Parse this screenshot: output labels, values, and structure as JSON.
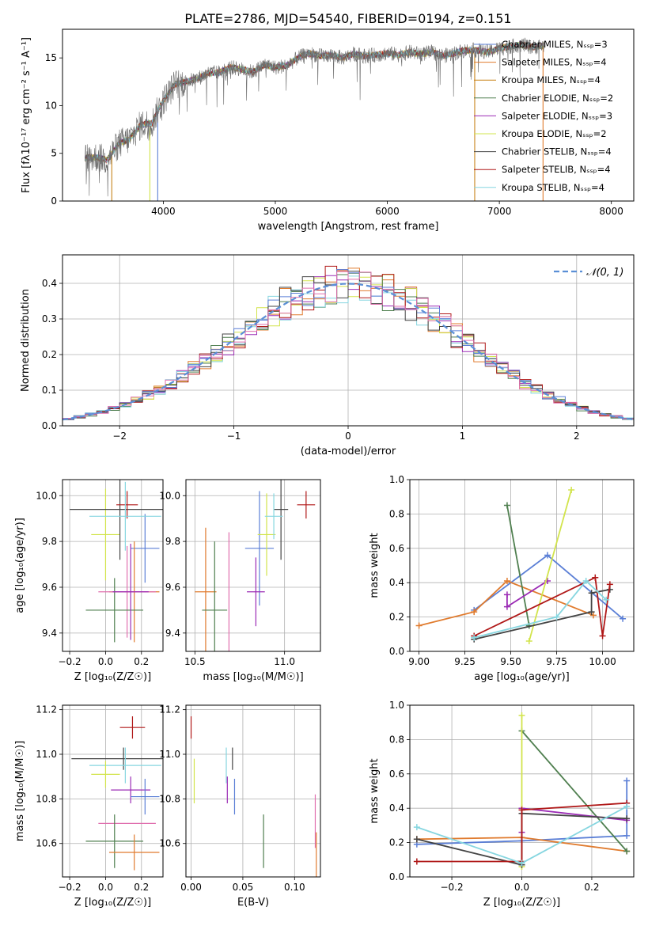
{
  "figure_title": "PLATE=2786, MJD=54540, FIBERID=0194, z=0.151",
  "series_colors": [
    "#5b7fd6",
    "#e07b2e",
    "#c8831a",
    "#4f7f4f",
    "#9b2bb5",
    "#d2e44c",
    "#444444",
    "#b01818",
    "#86d6e0"
  ],
  "chart_data": [
    {
      "id": "spectrum",
      "type": "line",
      "title": "PLATE=2786, MJD=54540, FIBERID=0194, z=0.151",
      "xlabel": "wavelength [Angstrom, rest frame]",
      "ylabel": "Flux [fλ10⁻¹⁷ erg cm⁻² s⁻¹ A⁻¹]",
      "xlim": [
        3100,
        8200
      ],
      "ylim": [
        0,
        18
      ],
      "xticks": [
        4000,
        5000,
        6000,
        7000,
        8000
      ],
      "yticks": [
        0,
        5,
        10,
        15
      ],
      "grid": false,
      "legend_position": "top-right",
      "legend": [
        {
          "label": "Chabrier MILES, Nₛₛₚ=3",
          "color": "#5b7fd6"
        },
        {
          "label": "Salpeter MILES, Nₛₛₚ=4",
          "color": "#e07b2e"
        },
        {
          "label": "Kroupa MILES, Nₛₛₚ=4",
          "color": "#c8831a"
        },
        {
          "label": "Chabrier ELODIE, Nₛₛₚ=2",
          "color": "#4f7f4f"
        },
        {
          "label": "Salpeter ELODIE, Nₛₛₚ=3",
          "color": "#9b2bb5"
        },
        {
          "label": "Kroupa ELODIE, Nₛₛₚ=2",
          "color": "#d2e44c"
        },
        {
          "label": "Chabrier STELIB, Nₛₛₚ=4",
          "color": "#444444"
        },
        {
          "label": "Salpeter STELIB, Nₛₛₚ=4",
          "color": "#b01818"
        },
        {
          "label": "Kroupa STELIB, Nₛₛₚ=4",
          "color": "#86d6e0"
        }
      ],
      "data_curve": {
        "x": [
          3300,
          3400,
          3500,
          3600,
          3700,
          3800,
          3900,
          3950,
          4000,
          4100,
          4200,
          4300,
          4400,
          4500,
          4600,
          4700,
          4800,
          4900,
          5000,
          5100,
          5200,
          5300,
          5400,
          5500,
          5600,
          5700,
          5800,
          5900,
          6000,
          6100,
          6200,
          6300,
          6400,
          6500,
          6600,
          6700,
          6800,
          6900,
          7000,
          7100,
          7200,
          7300,
          7400
        ],
        "y": [
          4.5,
          4.6,
          4.3,
          6.0,
          6.5,
          8.0,
          8.2,
          9.5,
          10.5,
          12.2,
          12.5,
          12.8,
          13.4,
          13.5,
          14.0,
          13.8,
          13.5,
          14.3,
          14.0,
          14.2,
          15.0,
          15.5,
          15.2,
          15.3,
          15.0,
          15.4,
          15.2,
          15.3,
          15.5,
          15.3,
          15.6,
          15.4,
          15.6,
          15.2,
          15.5,
          15.8,
          15.8,
          15.6,
          16.0,
          16.2,
          16.4,
          16.1,
          16.3
        ]
      },
      "model_dropouts": [
        {
          "color": "#c8831a",
          "x": 3540
        },
        {
          "color": "#d2e44c",
          "x": 3880
        },
        {
          "color": "#5b7fd6",
          "x": 3950
        },
        {
          "color": "#c8831a",
          "x": 6780
        },
        {
          "color": "#e07b2e",
          "x": 7390
        }
      ]
    },
    {
      "id": "residuals",
      "type": "histogram",
      "xlabel": "(data-model)/error",
      "ylabel": "Normed distribution",
      "xlim": [
        -2.5,
        2.5
      ],
      "ylim": [
        0,
        0.48
      ],
      "xticks": [
        -2,
        -1,
        0,
        1,
        2
      ],
      "yticks": [
        0.0,
        0.1,
        0.2,
        0.3,
        0.4
      ],
      "grid": true,
      "legend_position": "top-right",
      "legend": [
        {
          "label": "𝒩(0, 1)",
          "color": "#5b8fd6",
          "style": "dashed"
        }
      ],
      "bin_width": 0.1,
      "reference_curve": "normal(0,1)"
    },
    {
      "id": "age_vs_Z",
      "type": "scatter",
      "xlabel": "Z [log₁₀(Z/Z☉)]",
      "ylabel": "age  [log₁₀(age/yr)]",
      "xlim": [
        -0.24,
        0.32
      ],
      "ylim": [
        9.32,
        10.07
      ],
      "xticks": [
        -0.2,
        0.0,
        0.2
      ],
      "yticks": [
        9.4,
        9.6,
        9.8,
        10.0
      ],
      "grid": true,
      "points": [
        {
          "color": "#5b7fd6",
          "x": 0.22,
          "y": 9.77,
          "xerr": 0.08,
          "yerr": 0.15
        },
        {
          "color": "#e07b2e",
          "x": 0.16,
          "y": 9.58,
          "xerr": 0.14,
          "yerr": 0.22
        },
        {
          "color": "#e06fae",
          "x": 0.12,
          "y": 9.58,
          "xerr": 0.16,
          "yerr": 0.2
        },
        {
          "color": "#4f7f4f",
          "x": 0.05,
          "y": 9.5,
          "xerr": 0.16,
          "yerr": 0.14
        },
        {
          "color": "#9b2bb5",
          "x": 0.14,
          "y": 9.58,
          "xerr": 0.1,
          "yerr": 0.21
        },
        {
          "color": "#d2e44c",
          "x": 0.0,
          "y": 9.83,
          "xerr": 0.08,
          "yerr": 0.2
        },
        {
          "color": "#444444",
          "x": 0.08,
          "y": 9.94,
          "xerr": 0.28,
          "yerr": 0.22
        },
        {
          "color": "#b01818",
          "x": 0.12,
          "y": 9.96,
          "xerr": 0.06,
          "yerr": 0.06
        },
        {
          "color": "#86d6e0",
          "x": 0.11,
          "y": 9.91,
          "xerr": 0.2,
          "yerr": 0.15
        }
      ]
    },
    {
      "id": "age_vs_mass",
      "type": "scatter",
      "xlabel": "mass [log₁₀(M/M☉)]",
      "ylabel": "",
      "xlim": [
        10.45,
        11.2
      ],
      "ylim": [
        9.32,
        10.07
      ],
      "xticks": [
        10.5,
        11.0
      ],
      "yticks": [
        9.4,
        9.6,
        9.8,
        10.0
      ],
      "grid": true,
      "points": [
        {
          "color": "#5b7fd6",
          "x": 10.86,
          "y": 9.77,
          "xerr": 0.08,
          "yerr": 0.25
        },
        {
          "color": "#e07b2e",
          "x": 10.56,
          "y": 9.58,
          "xerr": 0.06,
          "yerr": 0.28
        },
        {
          "color": "#e06fae",
          "x": 10.69,
          "y": 9.58,
          "xerr": 0.0,
          "yerr": 0.26
        },
        {
          "color": "#4f7f4f",
          "x": 10.61,
          "y": 9.5,
          "xerr": 0.07,
          "yerr": 0.3
        },
        {
          "color": "#9b2bb5",
          "x": 10.84,
          "y": 9.58,
          "xerr": 0.05,
          "yerr": 0.15
        },
        {
          "color": "#d2e44c",
          "x": 10.9,
          "y": 9.83,
          "xerr": 0.05,
          "yerr": 0.18
        },
        {
          "color": "#444444",
          "x": 10.98,
          "y": 9.94,
          "xerr": 0.04,
          "yerr": 0.22
        },
        {
          "color": "#b01818",
          "x": 11.12,
          "y": 9.96,
          "xerr": 0.05,
          "yerr": 0.06
        },
        {
          "color": "#86d6e0",
          "x": 10.94,
          "y": 9.91,
          "xerr": 0.05,
          "yerr": 0.1
        }
      ]
    },
    {
      "id": "weight_vs_age",
      "type": "line",
      "xlabel": "age  [log₁₀(age/yr)]",
      "ylabel": "mass weight",
      "xlim": [
        8.95,
        10.17
      ],
      "ylim": [
        0.0,
        1.0
      ],
      "xticks": [
        9.0,
        9.25,
        9.5,
        9.75,
        10.0
      ],
      "yticks": [
        0.0,
        0.2,
        0.4,
        0.6,
        0.8,
        1.0
      ],
      "grid": true,
      "series": [
        {
          "color": "#5b7fd6",
          "x": [
            9.3,
            9.7,
            10.11
          ],
          "y": [
            0.24,
            0.56,
            0.19
          ]
        },
        {
          "color": "#e07b2e",
          "x": [
            9.0,
            9.3,
            9.48,
            9.95
          ],
          "y": [
            0.15,
            0.23,
            0.41,
            0.21
          ]
        },
        {
          "color": "#4f7f4f",
          "x": [
            9.48,
            9.6
          ],
          "y": [
            0.85,
            0.15
          ]
        },
        {
          "color": "#9b2bb5",
          "x": [
            9.48,
            9.48,
            9.7
          ],
          "y": [
            0.33,
            0.26,
            0.41
          ]
        },
        {
          "color": "#d2e44c",
          "x": [
            9.6,
            9.83
          ],
          "y": [
            0.06,
            0.94
          ]
        },
        {
          "color": "#444444",
          "x": [
            9.3,
            9.94,
            9.94,
            10.04
          ],
          "y": [
            0.07,
            0.23,
            0.34,
            0.36
          ]
        },
        {
          "color": "#b01818",
          "x": [
            9.3,
            9.96,
            10.0,
            10.04
          ],
          "y": [
            0.09,
            0.43,
            0.09,
            0.39
          ]
        },
        {
          "color": "#86d6e0",
          "x": [
            9.3,
            9.75,
            9.91,
            10.02
          ],
          "y": [
            0.08,
            0.2,
            0.41,
            0.3
          ]
        }
      ]
    },
    {
      "id": "mass_vs_Z",
      "type": "scatter",
      "xlabel": "Z [log₁₀(Z/Z☉)]",
      "ylabel": "mass [log₁₀(M/M☉)]",
      "xlim": [
        -0.24,
        0.32
      ],
      "ylim": [
        10.45,
        11.22
      ],
      "xticks": [
        -0.2,
        0.0,
        0.2
      ],
      "yticks": [
        10.6,
        10.8,
        11.0,
        11.2
      ],
      "grid": true,
      "points": [
        {
          "color": "#b01818",
          "x": 0.15,
          "y": 11.12,
          "xerr": 0.07,
          "yerr": 0.05
        },
        {
          "color": "#444444",
          "x": 0.1,
          "y": 10.98,
          "xerr": 0.29,
          "yerr": 0.05
        },
        {
          "color": "#86d6e0",
          "x": 0.11,
          "y": 10.95,
          "xerr": 0.2,
          "yerr": 0.08
        },
        {
          "color": "#d2e44c",
          "x": 0.0,
          "y": 10.91,
          "xerr": 0.08,
          "yerr": 0.06
        },
        {
          "color": "#9b2bb5",
          "x": 0.14,
          "y": 10.84,
          "xerr": 0.11,
          "yerr": 0.06
        },
        {
          "color": "#5b7fd6",
          "x": 0.22,
          "y": 10.81,
          "xerr": 0.08,
          "yerr": 0.08
        },
        {
          "color": "#e06fae",
          "x": 0.12,
          "y": 10.69,
          "xerr": 0.16,
          "yerr": 0.0
        },
        {
          "color": "#4f7f4f",
          "x": 0.05,
          "y": 10.61,
          "xerr": 0.16,
          "yerr": 0.12
        },
        {
          "color": "#e07b2e",
          "x": 0.16,
          "y": 10.56,
          "xerr": 0.14,
          "yerr": 0.08
        }
      ]
    },
    {
      "id": "mass_vs_EBV",
      "type": "scatter",
      "xlabel": "E(B-V)",
      "ylabel": "",
      "xlim": [
        -0.005,
        0.125
      ],
      "ylim": [
        10.45,
        11.22
      ],
      "xticks": [
        0.0,
        0.05,
        0.1
      ],
      "yticks": [
        10.6,
        10.8,
        11.0,
        11.2
      ],
      "grid": true,
      "points": [
        {
          "color": "#b01818",
          "x": 0.0,
          "y": 11.12,
          "xerr": 0.0,
          "yerr": 0.05
        },
        {
          "color": "#d2e44c",
          "x": 0.003,
          "y": 10.88,
          "xerr": 0.0,
          "yerr": 0.1
        },
        {
          "color": "#86d6e0",
          "x": 0.034,
          "y": 10.95,
          "xerr": 0.0,
          "yerr": 0.08
        },
        {
          "color": "#9b2bb5",
          "x": 0.035,
          "y": 10.84,
          "xerr": 0.0,
          "yerr": 0.06
        },
        {
          "color": "#444444",
          "x": 0.04,
          "y": 10.98,
          "xerr": 0.0,
          "yerr": 0.05
        },
        {
          "color": "#5b7fd6",
          "x": 0.042,
          "y": 10.81,
          "xerr": 0.0,
          "yerr": 0.08
        },
        {
          "color": "#4f7f4f",
          "x": 0.07,
          "y": 10.61,
          "xerr": 0.0,
          "yerr": 0.12
        },
        {
          "color": "#e06fae",
          "x": 0.12,
          "y": 10.7,
          "xerr": 0.0,
          "yerr": 0.12
        },
        {
          "color": "#e07b2e",
          "x": 0.121,
          "y": 10.55,
          "xerr": 0.0,
          "yerr": 0.1
        }
      ]
    },
    {
      "id": "weight_vs_Z",
      "type": "line",
      "xlabel": "Z [log₁₀(Z/Z☉)]",
      "ylabel": "mass weight",
      "xlim": [
        -0.32,
        0.32
      ],
      "ylim": [
        0.0,
        1.0
      ],
      "xticks": [
        -0.2,
        0.0,
        0.2
      ],
      "yticks": [
        0.0,
        0.2,
        0.4,
        0.6,
        0.8,
        1.0
      ],
      "grid": true,
      "series": [
        {
          "color": "#5b7fd6",
          "x": [
            -0.3,
            0.0,
            0.3,
            0.3
          ],
          "y": [
            0.19,
            0.21,
            0.24,
            0.56
          ]
        },
        {
          "color": "#e07b2e",
          "x": [
            -0.3,
            0.0,
            0.3
          ],
          "y": [
            0.22,
            0.23,
            0.15
          ]
        },
        {
          "color": "#4f7f4f",
          "x": [
            0.0,
            0.3
          ],
          "y": [
            0.85,
            0.15
          ]
        },
        {
          "color": "#9b2bb5",
          "x": [
            0.0,
            0.0,
            0.3
          ],
          "y": [
            0.26,
            0.4,
            0.33
          ]
        },
        {
          "color": "#d2e44c",
          "x": [
            0.0,
            0.0
          ],
          "y": [
            0.06,
            0.94
          ]
        },
        {
          "color": "#444444",
          "x": [
            -0.3,
            0.0,
            0.0,
            0.3
          ],
          "y": [
            0.22,
            0.07,
            0.37,
            0.34
          ]
        },
        {
          "color": "#b01818",
          "x": [
            -0.3,
            0.0,
            0.0,
            0.3
          ],
          "y": [
            0.09,
            0.09,
            0.39,
            0.43
          ]
        },
        {
          "color": "#86d6e0",
          "x": [
            -0.3,
            0.0,
            0.3
          ],
          "y": [
            0.29,
            0.08,
            0.41
          ]
        }
      ]
    }
  ]
}
